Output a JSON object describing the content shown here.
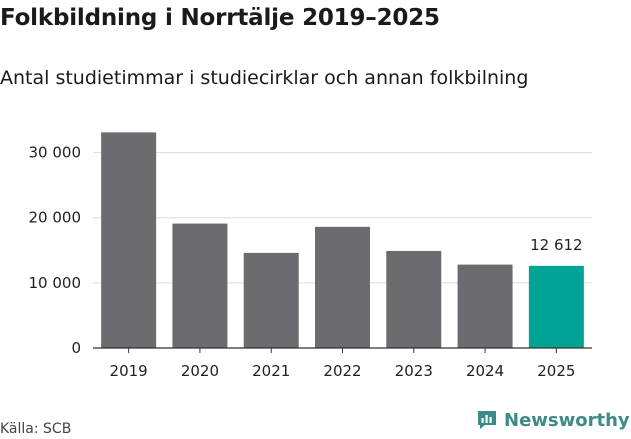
{
  "header": {
    "title": "Folkbildning i Norrtälje 2019–2025",
    "subtitle": "Antal studietimmar i studiecirklar och annan folkbilning"
  },
  "chart_data": {
    "type": "bar",
    "categories": [
      "2019",
      "2020",
      "2021",
      "2022",
      "2023",
      "2024",
      "2025"
    ],
    "values": [
      33100,
      19100,
      14600,
      18600,
      14900,
      12800,
      12612
    ],
    "highlight_index": 6,
    "data_labels": [
      {
        "index": 6,
        "text": "12 612"
      }
    ],
    "yticks": [
      {
        "value": 0,
        "label": "0"
      },
      {
        "value": 10000,
        "label": "10 000"
      },
      {
        "value": 20000,
        "label": "20 000"
      },
      {
        "value": 30000,
        "label": "30 000"
      }
    ],
    "ylim": [
      0,
      35000
    ],
    "grid": true,
    "colors": {
      "bar": "#6c6b70",
      "highlight": "#00a394",
      "grid": "#dddddd",
      "axis": "#333333"
    }
  },
  "footer": {
    "source": "Källa: SCB",
    "brand": "Newsworthy",
    "brand_color": "#3e8a87"
  }
}
